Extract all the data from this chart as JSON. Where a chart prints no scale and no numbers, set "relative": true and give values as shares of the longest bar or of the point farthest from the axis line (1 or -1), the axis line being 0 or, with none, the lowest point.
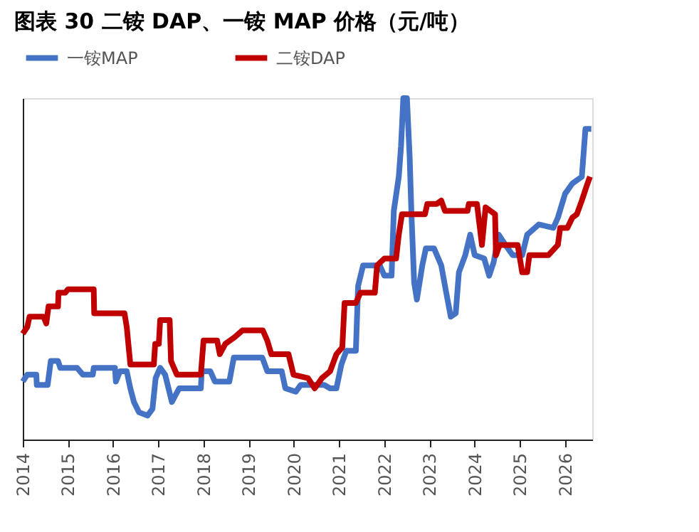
{
  "chart_data": {
    "type": "line",
    "title": "图表 30 二铵 DAP、一铵 MAP 价格（元/吨）",
    "relative": true,
    "xlim": [
      2014,
      2026.6
    ],
    "xticks": [
      2014,
      2015,
      2016,
      2017,
      2018,
      2019,
      2020,
      2021,
      2022,
      2023,
      2024,
      2025,
      2026
    ],
    "grid": false,
    "legend": "top",
    "marker": "none",
    "line_style": "solid",
    "series": [
      {
        "name": "一铵MAP",
        "color": "#4472c4",
        "x": [
          2014.0,
          2014.1,
          2014.3,
          2014.31,
          2014.55,
          2014.62,
          2014.78,
          2014.83,
          2015.2,
          2015.33,
          2015.55,
          2015.57,
          2016.04,
          2016.06,
          2016.15,
          2016.3,
          2016.38,
          2016.46,
          2016.57,
          2016.76,
          2016.87,
          2016.94,
          2017.04,
          2017.15,
          2017.3,
          2017.46,
          2017.94,
          2017.96,
          2018.15,
          2018.25,
          2018.57,
          2018.67,
          2019.3,
          2019.41,
          2019.73,
          2019.81,
          2020.04,
          2020.15,
          2020.67,
          2020.8,
          2020.94,
          2021.05,
          2021.16,
          2021.37,
          2021.42,
          2021.53,
          2021.9,
          2022.0,
          2022.16,
          2022.21,
          2022.32,
          2022.37,
          2022.42,
          2022.5,
          2022.56,
          2022.6,
          2022.66,
          2022.72,
          2022.84,
          2022.92,
          2023.1,
          2023.26,
          2023.37,
          2023.47,
          2023.58,
          2023.65,
          2023.79,
          2023.9,
          2024.0,
          2024.21,
          2024.32,
          2024.42,
          2024.53,
          2024.68,
          2024.84,
          2025.05,
          2025.16,
          2025.42,
          2025.74,
          2025.84,
          2026.0,
          2026.16,
          2026.37,
          2026.45,
          2026.58
        ],
        "values": [
          0.17,
          0.19,
          0.19,
          0.16,
          0.16,
          0.23,
          0.23,
          0.21,
          0.21,
          0.19,
          0.19,
          0.21,
          0.21,
          0.17,
          0.2,
          0.2,
          0.15,
          0.11,
          0.08,
          0.07,
          0.09,
          0.18,
          0.21,
          0.19,
          0.11,
          0.15,
          0.15,
          0.2,
          0.2,
          0.17,
          0.17,
          0.24,
          0.24,
          0.2,
          0.2,
          0.15,
          0.14,
          0.16,
          0.16,
          0.15,
          0.15,
          0.22,
          0.26,
          0.26,
          0.45,
          0.51,
          0.51,
          0.48,
          0.48,
          0.67,
          0.77,
          0.86,
          1.0,
          1.0,
          0.83,
          0.66,
          0.46,
          0.41,
          0.51,
          0.56,
          0.56,
          0.51,
          0.43,
          0.36,
          0.37,
          0.49,
          0.54,
          0.6,
          0.54,
          0.53,
          0.48,
          0.52,
          0.6,
          0.57,
          0.54,
          0.54,
          0.6,
          0.63,
          0.62,
          0.65,
          0.72,
          0.75,
          0.77,
          0.91,
          0.91
        ]
      },
      {
        "name": "二铵DAP",
        "color": "#c00000",
        "x": [
          2014.0,
          2014.1,
          2014.15,
          2014.46,
          2014.52,
          2014.57,
          2014.78,
          2014.79,
          2014.94,
          2015.0,
          2015.57,
          2015.58,
          2016.25,
          2016.3,
          2016.38,
          2016.9,
          2016.93,
          2017.01,
          2017.04,
          2017.25,
          2017.28,
          2017.41,
          2017.94,
          2018.0,
          2018.3,
          2018.36,
          2018.48,
          2018.69,
          2018.86,
          2019.31,
          2019.41,
          2019.5,
          2019.88,
          2019.99,
          2020.31,
          2020.46,
          2020.62,
          2020.8,
          2020.94,
          2021.07,
          2021.12,
          2021.37,
          2021.47,
          2021.79,
          2021.84,
          2022.0,
          2022.26,
          2022.32,
          2022.39,
          2022.9,
          2022.95,
          2023.16,
          2023.26,
          2023.34,
          2023.84,
          2023.87,
          2024.05,
          2024.16,
          2024.24,
          2024.45,
          2024.47,
          2024.55,
          2024.95,
          2025.05,
          2025.16,
          2025.21,
          2025.63,
          2025.84,
          2025.89,
          2026.05,
          2026.16,
          2026.26,
          2026.37,
          2026.47,
          2026.55
        ],
        "values": [
          0.31,
          0.33,
          0.36,
          0.36,
          0.34,
          0.39,
          0.39,
          0.43,
          0.43,
          0.44,
          0.44,
          0.37,
          0.37,
          0.33,
          0.22,
          0.22,
          0.28,
          0.28,
          0.35,
          0.35,
          0.23,
          0.19,
          0.19,
          0.29,
          0.29,
          0.25,
          0.28,
          0.3,
          0.32,
          0.32,
          0.29,
          0.25,
          0.25,
          0.19,
          0.18,
          0.15,
          0.18,
          0.2,
          0.25,
          0.27,
          0.4,
          0.4,
          0.43,
          0.43,
          0.51,
          0.53,
          0.53,
          0.6,
          0.66,
          0.66,
          0.69,
          0.69,
          0.7,
          0.67,
          0.67,
          0.69,
          0.69,
          0.57,
          0.68,
          0.66,
          0.54,
          0.57,
          0.57,
          0.49,
          0.49,
          0.54,
          0.54,
          0.57,
          0.62,
          0.62,
          0.65,
          0.66,
          0.7,
          0.74,
          0.77
        ]
      }
    ]
  }
}
